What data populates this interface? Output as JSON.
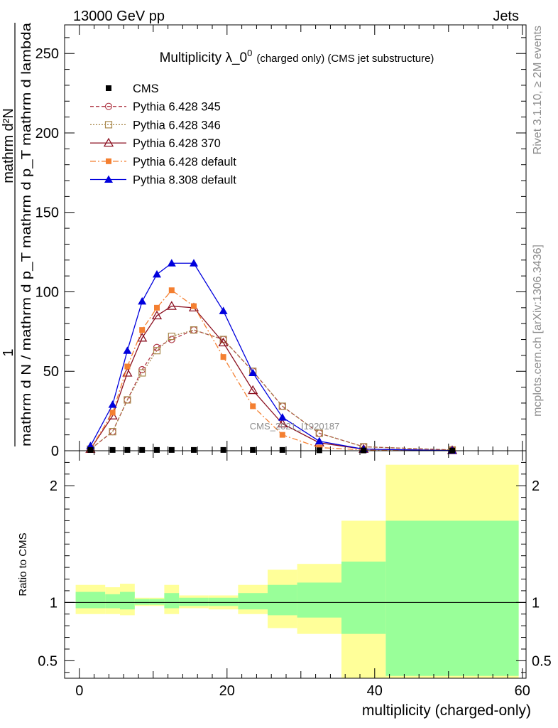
{
  "header": {
    "left": "13000 GeV pp",
    "right": "Jets"
  },
  "side_text": {
    "top": "Rivet 3.1.10, ≥ 2M events",
    "bottom": "mcplots.cern.ch [arXiv:1306.3436]"
  },
  "watermark": "CMS_2021_I1920187",
  "chart_data": {
    "type": "line",
    "title": "Multiplicity λ_0",
    "title_sup": "0",
    "title_suffix": "(charged only) (CMS jet substructure)",
    "xlabel": "multiplicity (charged-only)",
    "ylabel_main": {
      "one": "1",
      "den": "mathrm d N / mathrm d p_T mathrm d p_T mathrm d lambda",
      "num": "mathrm d²N"
    },
    "ylabel_ratio": "Ratio to CMS",
    "xlim": [
      -2,
      60.5
    ],
    "ylim": [
      0,
      268
    ],
    "ratio_ylim": [
      0.35,
      2.3
    ],
    "x_ticks": [
      "0",
      "20",
      "40",
      "60"
    ],
    "y_ticks": [
      "0",
      "50",
      "100",
      "150",
      "200",
      "250"
    ],
    "ratio_ticks": [
      "0.5",
      "1",
      "2"
    ],
    "legend": [
      "CMS",
      "Pythia 6.428 345",
      "Pythia 6.428 346",
      "Pythia 6.428 370",
      "Pythia 6.428 default",
      "Pythia 8.308 default"
    ],
    "colors": {
      "cms": "#000000",
      "p345": "#b03a48",
      "p346": "#a8874a",
      "p370": "#8b1020",
      "pdef": "#f47f30",
      "p8": "#0000dd",
      "band_outer": "#ffff99",
      "band_inner": "#99ff99"
    },
    "x": [
      1.5,
      4.5,
      6.5,
      8.5,
      10.5,
      12.5,
      15.5,
      19.5,
      23.5,
      27.5,
      32.5,
      38.5,
      50.5
    ],
    "series": [
      {
        "name": "CMS",
        "values": [
          0.5,
          0.5,
          0.5,
          0.5,
          0.5,
          0.5,
          0.5,
          0.5,
          0.5,
          0.5,
          0.3,
          0.2,
          0.1
        ]
      },
      {
        "name": "Pythia 6.428 345",
        "values": [
          1,
          12,
          32,
          51,
          65,
          70,
          76,
          70,
          50,
          28,
          11,
          2.5,
          0.5
        ]
      },
      {
        "name": "Pythia 6.428 346",
        "values": [
          1,
          12,
          32,
          49,
          63,
          72,
          76,
          70,
          50,
          28,
          11,
          2.5,
          0.5
        ]
      },
      {
        "name": "Pythia 6.428 370",
        "values": [
          1,
          22,
          49,
          71,
          85,
          91,
          90,
          68,
          38,
          17,
          5,
          1,
          0.2
        ]
      },
      {
        "name": "Pythia 6.428 default",
        "values": [
          1,
          24,
          53,
          76,
          90,
          101,
          91,
          59,
          28,
          10,
          2,
          0.5,
          0.1
        ]
      },
      {
        "name": "Pythia 8.308 default",
        "values": [
          3,
          29,
          63,
          94,
          111,
          118,
          118,
          88,
          49,
          21,
          6,
          1,
          0.1
        ]
      }
    ],
    "ratio_bands": [
      {
        "x0": -0.5,
        "x1": 3.5,
        "out_lo": 0.9,
        "out_hi": 1.15,
        "in_lo": 0.95,
        "in_hi": 1.09
      },
      {
        "x0": 3.5,
        "x1": 5.5,
        "out_lo": 0.9,
        "out_hi": 1.13,
        "in_lo": 0.95,
        "in_hi": 1.07
      },
      {
        "x0": 5.5,
        "x1": 7.5,
        "out_lo": 0.89,
        "out_hi": 1.16,
        "in_lo": 0.94,
        "in_hi": 1.09
      },
      {
        "x0": 7.5,
        "x1": 9.5,
        "out_lo": 0.97,
        "out_hi": 1.04,
        "in_lo": 0.98,
        "in_hi": 1.03
      },
      {
        "x0": 9.5,
        "x1": 11.5,
        "out_lo": 0.97,
        "out_hi": 1.04,
        "in_lo": 0.98,
        "in_hi": 1.03
      },
      {
        "x0": 11.5,
        "x1": 13.5,
        "out_lo": 0.9,
        "out_hi": 1.15,
        "in_lo": 0.95,
        "in_hi": 1.08
      },
      {
        "x0": 13.5,
        "x1": 17.5,
        "out_lo": 0.95,
        "out_hi": 1.06,
        "in_lo": 0.97,
        "in_hi": 1.04
      },
      {
        "x0": 17.5,
        "x1": 21.5,
        "out_lo": 0.94,
        "out_hi": 1.06,
        "in_lo": 0.97,
        "in_hi": 1.04
      },
      {
        "x0": 21.5,
        "x1": 25.5,
        "out_lo": 0.9,
        "out_hi": 1.15,
        "in_lo": 0.94,
        "in_hi": 1.08
      },
      {
        "x0": 25.5,
        "x1": 29.5,
        "out_lo": 0.78,
        "out_hi": 1.28,
        "in_lo": 0.89,
        "in_hi": 1.15
      },
      {
        "x0": 29.5,
        "x1": 35.5,
        "out_lo": 0.73,
        "out_hi": 1.33,
        "in_lo": 0.87,
        "in_hi": 1.17
      },
      {
        "x0": 35.5,
        "x1": 41.5,
        "out_lo": 0.35,
        "out_hi": 1.7,
        "in_lo": 0.73,
        "in_hi": 1.35
      },
      {
        "x0": 41.5,
        "x1": 59.5,
        "out_lo": 0.35,
        "out_hi": 2.18,
        "in_lo": 0.37,
        "in_hi": 1.7
      }
    ]
  }
}
